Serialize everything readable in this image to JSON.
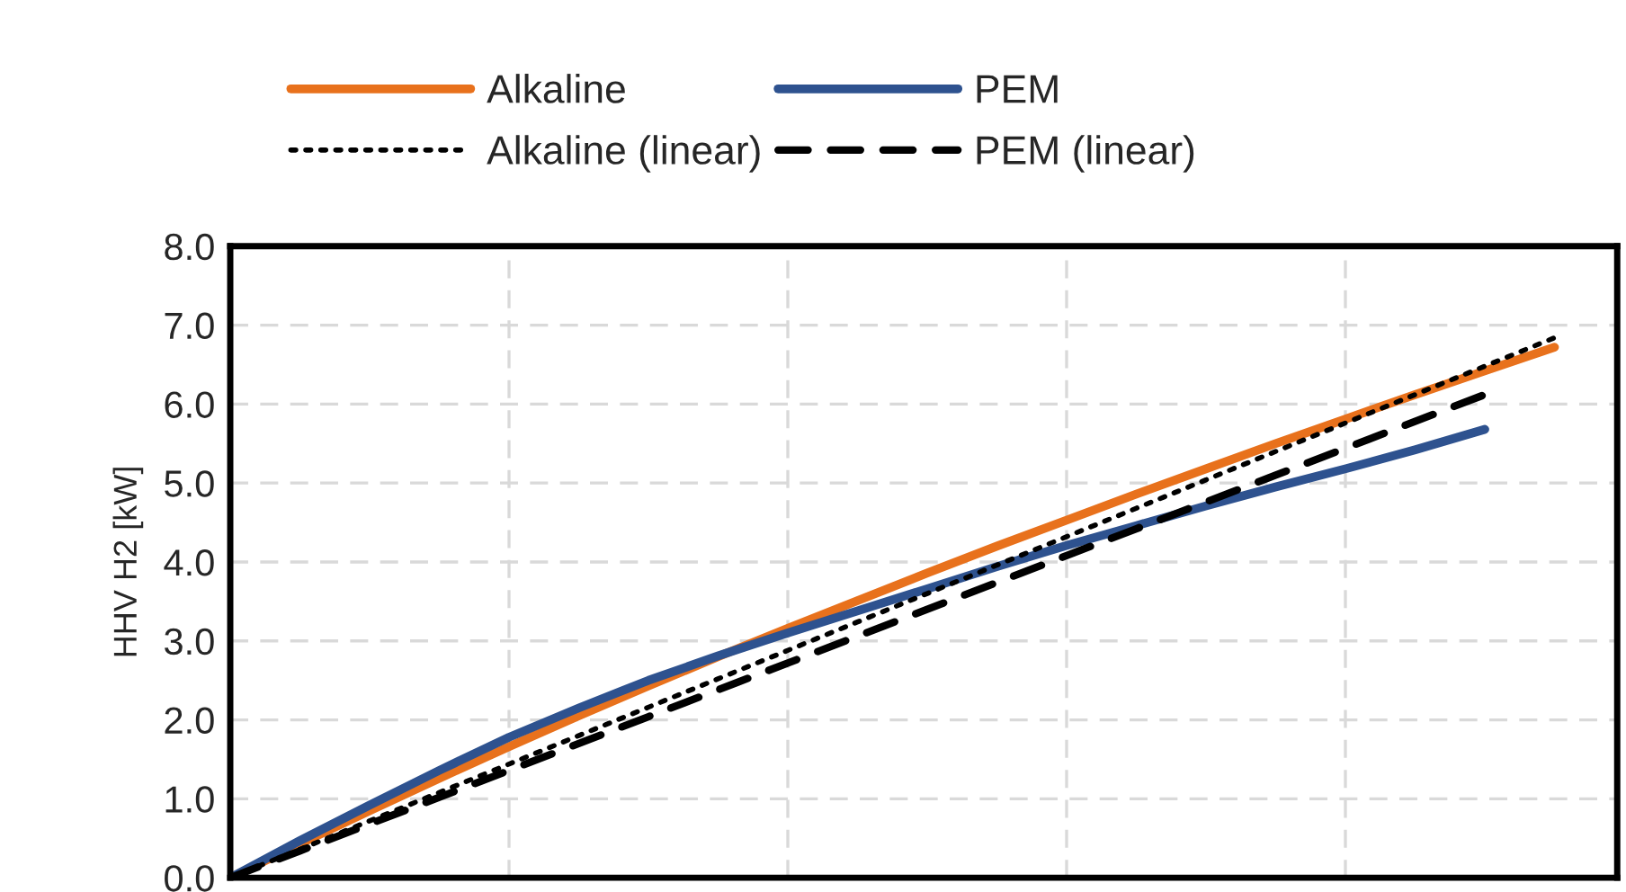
{
  "chart_data": {
    "type": "line",
    "ylabel": "HHV H2 [kW]",
    "categories": [
      null,
      null,
      null,
      null,
      null,
      null,
      null,
      null,
      null,
      null,
      null,
      null,
      null,
      null,
      null,
      null,
      null,
      null,
      null,
      null
    ],
    "series": [
      {
        "name": "Alkaline",
        "color": "#e8711c",
        "line_style": "solid",
        "values": [
          0,
          0.43,
          0.85,
          1.26,
          1.66,
          2.05,
          2.43,
          2.8,
          3.16,
          3.51,
          3.86,
          4.2,
          4.53,
          4.86,
          5.18,
          5.5,
          5.81,
          6.12,
          6.42,
          6.72
        ]
      },
      {
        "name": "PEM",
        "color": "#2e528f",
        "line_style": "solid",
        "values": [
          0,
          0.47,
          0.92,
          1.36,
          1.78,
          2.15,
          2.5,
          2.81,
          3.1,
          3.38,
          3.66,
          3.94,
          4.21,
          4.46,
          4.71,
          4.95,
          5.18,
          5.42,
          5.68,
          null
        ]
      },
      {
        "name": "Alkaline (linear)",
        "color": "#000000",
        "line_style": "dotted",
        "values": [
          0,
          0.36,
          0.72,
          1.08,
          1.44,
          1.8,
          2.16,
          2.52,
          2.88,
          3.24,
          3.6,
          3.96,
          4.32,
          4.68,
          5.04,
          5.4,
          5.76,
          6.12,
          6.48,
          6.84
        ]
      },
      {
        "name": "PEM (linear)",
        "color": "#000000",
        "line_style": "dashed",
        "values": [
          0,
          0.34,
          0.68,
          1.02,
          1.36,
          1.7,
          2.04,
          2.38,
          2.72,
          3.06,
          3.4,
          3.74,
          4.08,
          4.42,
          4.76,
          5.1,
          5.44,
          5.78,
          6.12,
          null
        ]
      }
    ],
    "ylim": [
      0,
      8
    ],
    "yticks": [
      {
        "value": 0,
        "label": "0.0"
      },
      {
        "value": 1,
        "label": "1.0"
      },
      {
        "value": 2,
        "label": "2.0"
      },
      {
        "value": 3,
        "label": "3.0"
      },
      {
        "value": 4,
        "label": "4.0"
      },
      {
        "value": 5,
        "label": "5.0"
      },
      {
        "value": 6,
        "label": "6.0"
      },
      {
        "value": 7,
        "label": "7.0"
      },
      {
        "value": 8,
        "label": "8.0"
      }
    ],
    "grid": true,
    "legend": "top",
    "tick_labels": "y",
    "marker": "none"
  }
}
